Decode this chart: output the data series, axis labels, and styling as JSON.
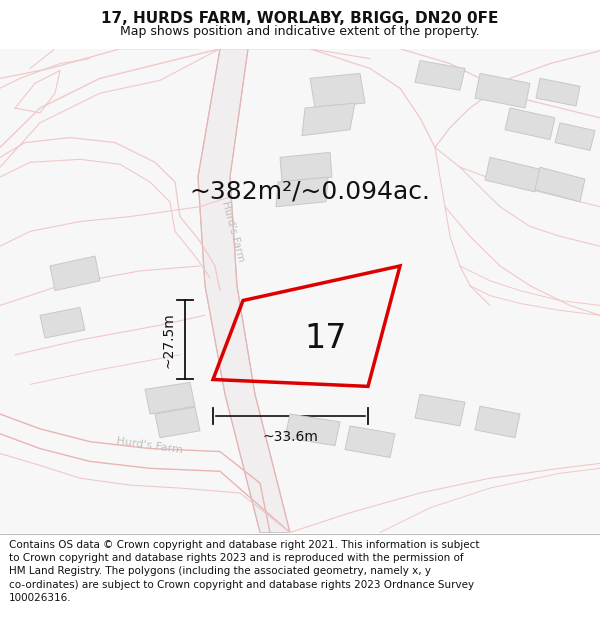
{
  "title": "17, HURDS FARM, WORLABY, BRIGG, DN20 0FE",
  "subtitle": "Map shows position and indicative extent of the property.",
  "footer_text": "Contains OS data © Crown copyright and database right 2021. This information is subject\nto Crown copyright and database rights 2023 and is reproduced with the permission of\nHM Land Registry. The polygons (including the associated geometry, namely x, y\nco-ordinates) are subject to Crown copyright and database rights 2023 Ordnance Survey\n100026316.",
  "area_label": "~382m²/~0.094ac.",
  "property_number": "17",
  "width_label": "~33.6m",
  "height_label": "~27.5m",
  "map_bg": "#f8f7f7",
  "road_fill": "#e8e8e8",
  "road_outline_color": "#e8b4b4",
  "road_outline_light": "#f0c8c8",
  "building_fill": "#dedede",
  "building_edge": "#c8c8c8",
  "highlight_color": "#dd0000",
  "dim_color": "#111111",
  "text_color": "#111111",
  "road_text_color": "#c0c0c0",
  "title_fontsize": 11,
  "subtitle_fontsize": 9,
  "footer_fontsize": 7.5,
  "area_fontsize": 18,
  "number_fontsize": 24
}
